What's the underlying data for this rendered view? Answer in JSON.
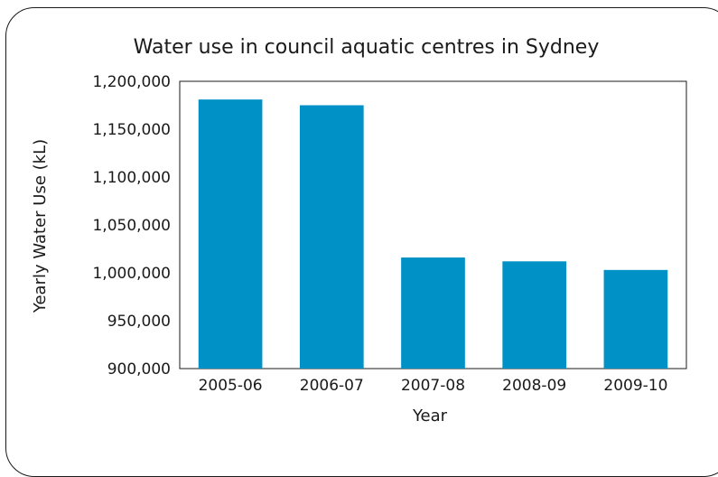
{
  "chart_data": {
    "type": "bar",
    "title": "Water use in council aquatic centres in Sydney",
    "xlabel": "Year",
    "ylabel": "Yearly Water Use (kL)",
    "categories": [
      "2005-06",
      "2006-07",
      "2007-08",
      "2008-09",
      "2009-10"
    ],
    "values": [
      1181000,
      1175000,
      1016000,
      1012000,
      1003000
    ],
    "ylim": [
      900000,
      1200000
    ],
    "yticks": [
      900000,
      950000,
      1000000,
      1050000,
      1100000,
      1150000,
      1200000
    ],
    "ytick_labels": [
      "900,000",
      "950,000",
      "1,000,000",
      "1,050,000",
      "1,100,000",
      "1,150,000",
      "1,200,000"
    ],
    "grid": false,
    "legend": "none",
    "bar_color": "#0091c7"
  }
}
